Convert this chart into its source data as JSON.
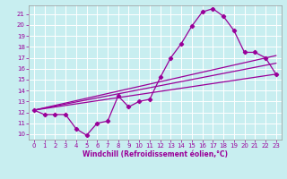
{
  "xlabel": "Windchill (Refroidissement éolien,°C)",
  "xlim": [
    -0.5,
    23.5
  ],
  "ylim": [
    9.5,
    21.8
  ],
  "yticks": [
    10,
    11,
    12,
    13,
    14,
    15,
    16,
    17,
    18,
    19,
    20,
    21
  ],
  "xticks": [
    0,
    1,
    2,
    3,
    4,
    5,
    6,
    7,
    8,
    9,
    10,
    11,
    12,
    13,
    14,
    15,
    16,
    17,
    18,
    19,
    20,
    21,
    22,
    23
  ],
  "bg_color": "#c8eef0",
  "grid_color": "#ffffff",
  "line_color": "#990099",
  "series1_x": [
    0,
    1,
    2,
    3,
    4,
    5,
    6,
    7,
    8,
    9,
    10,
    11,
    12,
    13,
    14,
    15,
    16,
    17,
    18,
    19,
    20,
    21,
    22,
    23
  ],
  "series1_y": [
    12.2,
    11.8,
    11.8,
    11.8,
    10.5,
    9.9,
    11.0,
    11.2,
    13.5,
    12.5,
    13.0,
    13.2,
    15.2,
    17.0,
    18.3,
    19.9,
    21.2,
    21.5,
    20.8,
    19.5,
    17.5,
    17.5,
    17.0,
    15.5
  ],
  "series2_x": [
    0,
    23
  ],
  "series2_y": [
    12.2,
    15.5
  ],
  "series3_x": [
    0,
    23
  ],
  "series3_y": [
    12.2,
    16.5
  ],
  "series4_x": [
    0,
    23
  ],
  "series4_y": [
    12.2,
    17.2
  ],
  "marker": "D",
  "markersize": 2.2,
  "linewidth": 0.9,
  "tick_fontsize": 5.0,
  "xlabel_fontsize": 5.5
}
